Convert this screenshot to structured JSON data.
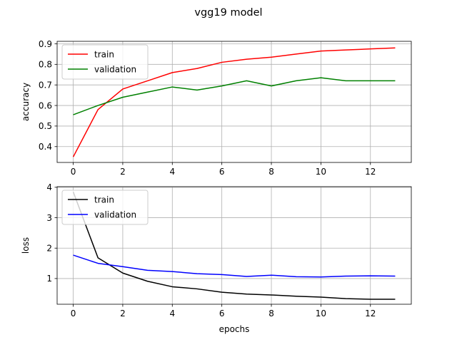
{
  "figure": {
    "suptitle": "vgg19 model"
  },
  "chart_data": [
    {
      "type": "line",
      "ylabel": "accuracy",
      "xlabel": "",
      "xlim": [
        -0.65,
        13.65
      ],
      "ylim": [
        0.323,
        0.912
      ],
      "xticks": [
        0,
        2,
        4,
        6,
        8,
        10,
        12
      ],
      "yticks": [
        0.4,
        0.5,
        0.6,
        0.7,
        0.8,
        0.9
      ],
      "ytick_labels": [
        "0.4",
        "0.5",
        "0.6",
        "0.7",
        "0.8",
        "0.9"
      ],
      "grid": true,
      "legend_position": "upper-left",
      "x": [
        0,
        1,
        2,
        3,
        4,
        5,
        6,
        7,
        8,
        9,
        10,
        11,
        12,
        13
      ],
      "series": [
        {
          "name": "train",
          "color": "#ff0000",
          "values": [
            0.35,
            0.58,
            0.68,
            0.72,
            0.76,
            0.78,
            0.81,
            0.825,
            0.835,
            0.85,
            0.865,
            0.87,
            0.875,
            0.88
          ]
        },
        {
          "name": "validation",
          "color": "#008000",
          "values": [
            0.555,
            0.6,
            0.64,
            0.665,
            0.69,
            0.675,
            0.695,
            0.72,
            0.695,
            0.72,
            0.735,
            0.72,
            0.72,
            0.72
          ]
        }
      ]
    },
    {
      "type": "line",
      "ylabel": "loss",
      "xlabel": "epochs",
      "xlim": [
        -0.65,
        13.65
      ],
      "ylim": [
        0.155,
        4.02
      ],
      "xticks": [
        0,
        2,
        4,
        6,
        8,
        10,
        12
      ],
      "yticks": [
        1,
        2,
        3,
        4
      ],
      "ytick_labels": [
        "1",
        "2",
        "3",
        "4"
      ],
      "grid": true,
      "legend_position": "upper-left",
      "x": [
        0,
        1,
        2,
        3,
        4,
        5,
        6,
        7,
        8,
        9,
        10,
        11,
        12,
        13
      ],
      "series": [
        {
          "name": "train",
          "color": "#000000",
          "values": [
            3.85,
            1.68,
            1.18,
            0.91,
            0.73,
            0.66,
            0.55,
            0.49,
            0.46,
            0.42,
            0.39,
            0.34,
            0.32,
            0.32
          ]
        },
        {
          "name": "validation",
          "color": "#0000ff",
          "values": [
            1.77,
            1.5,
            1.39,
            1.27,
            1.23,
            1.16,
            1.13,
            1.07,
            1.11,
            1.06,
            1.05,
            1.08,
            1.09,
            1.08
          ]
        }
      ]
    }
  ]
}
